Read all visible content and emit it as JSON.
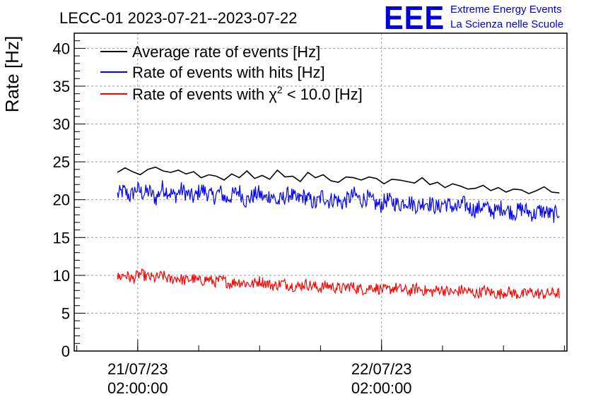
{
  "header": {
    "title": "LECC-01 2023-07-21--2023-07-22",
    "logo_text": "EEE",
    "logo_line1": "Extreme Energy Events",
    "logo_line2": "La Scienza nelle Scuole",
    "logo_color": "#0000dd"
  },
  "chart_data": {
    "type": "line",
    "title": "LECC-01 2023-07-21--2023-07-22",
    "xlabel": "",
    "ylabel": "Rate [Hz]",
    "ylim": [
      0,
      42
    ],
    "yticks": [
      0,
      5,
      10,
      15,
      20,
      25,
      30,
      35,
      40
    ],
    "xlim": [
      "2023-07-20 19:45",
      "2023-07-22 20:15"
    ],
    "xticks": [
      {
        "time": "2023-07-21 02:00",
        "date_label": "21/07/23",
        "time_label": "02:00:00"
      },
      {
        "time": "2023-07-22 02:00",
        "date_label": "22/07/23",
        "time_label": "02:00:00"
      }
    ],
    "grid": true,
    "legend_position": "top-left",
    "series": [
      {
        "name": "Average rate of events [Hz]",
        "color": "#000000",
        "x": [
          "2023-07-21 00:00",
          "2023-07-21 00:45",
          "2023-07-21 01:30",
          "2023-07-21 02:15",
          "2023-07-21 03:00",
          "2023-07-21 03:45",
          "2023-07-21 04:30",
          "2023-07-21 05:15",
          "2023-07-21 06:00",
          "2023-07-21 06:45",
          "2023-07-21 07:30",
          "2023-07-21 08:15",
          "2023-07-21 09:00",
          "2023-07-21 09:45",
          "2023-07-21 10:30",
          "2023-07-21 11:15",
          "2023-07-21 12:00",
          "2023-07-21 12:45",
          "2023-07-21 13:30",
          "2023-07-21 14:15",
          "2023-07-21 15:00",
          "2023-07-21 15:45",
          "2023-07-21 16:30",
          "2023-07-21 17:15",
          "2023-07-21 18:00",
          "2023-07-21 18:45",
          "2023-07-21 19:30",
          "2023-07-21 20:15",
          "2023-07-21 21:00",
          "2023-07-21 21:45",
          "2023-07-21 22:30",
          "2023-07-21 23:15",
          "2023-07-22 00:00",
          "2023-07-22 00:45",
          "2023-07-22 01:30",
          "2023-07-22 02:15",
          "2023-07-22 03:00",
          "2023-07-22 03:45",
          "2023-07-22 04:30",
          "2023-07-22 05:15",
          "2023-07-22 06:00",
          "2023-07-22 06:45",
          "2023-07-22 07:30",
          "2023-07-22 08:15",
          "2023-07-22 09:00",
          "2023-07-22 09:45",
          "2023-07-22 10:30",
          "2023-07-22 11:15",
          "2023-07-22 12:00",
          "2023-07-22 12:45",
          "2023-07-22 13:30",
          "2023-07-22 14:15",
          "2023-07-22 15:00",
          "2023-07-22 15:45",
          "2023-07-22 16:30",
          "2023-07-22 17:15",
          "2023-07-22 18:00",
          "2023-07-22 18:45",
          "2023-07-22 19:30"
        ],
        "values": [
          23.6,
          24.2,
          23.7,
          23.3,
          24.0,
          24.3,
          23.8,
          23.6,
          23.9,
          23.4,
          23.7,
          22.9,
          23.3,
          23.1,
          22.6,
          23.4,
          22.9,
          23.8,
          22.8,
          23.2,
          22.7,
          23.9,
          23.0,
          23.1,
          22.4,
          23.6,
          22.9,
          23.3,
          22.5,
          22.3,
          23.0,
          22.9,
          22.6,
          23.0,
          22.8,
          22.1,
          22.7,
          22.6,
          22.4,
          22.2,
          22.9,
          22.0,
          22.3,
          21.6,
          22.1,
          21.8,
          21.4,
          21.5,
          21.9,
          21.2,
          21.6,
          21.0,
          21.4,
          21.3,
          20.8,
          21.2,
          21.7,
          21.0,
          20.9
        ]
      },
      {
        "name": "Rate of events with hits [Hz]",
        "color": "#0000ff",
        "x_start": "2023-07-21 00:00",
        "x_end": "2023-07-22 19:30",
        "values": [
          20.6,
          21.2,
          20.4,
          21.5,
          20.8,
          21.1,
          20.1,
          21.6,
          21.0,
          20.5,
          21.3,
          20.7,
          20.2,
          21.4,
          20.9,
          20.3,
          21.1,
          20.0,
          20.6,
          21.2,
          19.8,
          20.4,
          20.9,
          20.1,
          20.7,
          19.6,
          20.3,
          20.8,
          19.9,
          20.5,
          20.0,
          19.4,
          20.6,
          19.8,
          20.2,
          19.5,
          20.1,
          20.7,
          19.9,
          20.3,
          19.6,
          19.2,
          20.0,
          19.7,
          19.3,
          19.9,
          19.5,
          19.1,
          19.8,
          19.4,
          18.9,
          19.6,
          19.2,
          18.8,
          19.5,
          18.9,
          18.6,
          19.2,
          18.7,
          18.4,
          19.0,
          18.6,
          18.2,
          18.8,
          18.5,
          18.0,
          18.6,
          18.3,
          17.9,
          18.5
        ]
      },
      {
        "name": "Rate of events with χ² < 10.0 [Hz]",
        "legend_prefix": "Rate of events with ",
        "legend_chi": "χ",
        "legend_sup": "2",
        "legend_suffix": " < 10.0 [Hz]",
        "color": "#ff0000",
        "x_start": "2023-07-21 00:00",
        "x_end": "2023-07-22 19:30",
        "values": [
          9.7,
          10.1,
          9.5,
          10.2,
          9.8,
          9.6,
          10.0,
          9.4,
          9.7,
          9.3,
          9.6,
          9.2,
          9.5,
          9.1,
          9.4,
          8.9,
          9.2,
          9.0,
          8.8,
          9.3,
          8.9,
          8.6,
          9.0,
          8.7,
          8.5,
          8.9,
          8.6,
          8.3,
          8.7,
          8.4,
          8.2,
          8.6,
          8.3,
          8.1,
          8.5,
          8.2,
          8.0,
          8.4,
          8.1,
          7.9,
          8.3,
          8.0,
          7.8,
          8.2,
          7.9,
          7.7,
          8.1,
          7.8,
          7.6,
          8.0,
          7.7,
          7.5,
          7.9,
          7.6,
          7.4,
          7.8,
          7.6,
          7.5,
          7.7,
          7.6
        ]
      }
    ]
  }
}
